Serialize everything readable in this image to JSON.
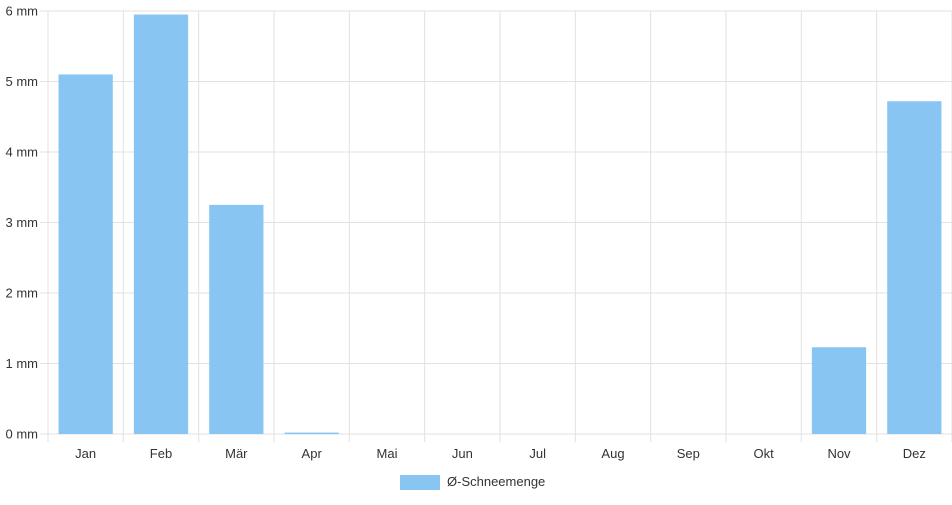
{
  "chart_data": {
    "type": "bar",
    "title": "",
    "xlabel": "",
    "ylabel": "",
    "categories": [
      "Jan",
      "Feb",
      "Mär",
      "Apr",
      "Mai",
      "Jun",
      "Jul",
      "Aug",
      "Sep",
      "Okt",
      "Nov",
      "Dez"
    ],
    "series": [
      {
        "name": "Ø-Schneemenge",
        "values": [
          5.1,
          5.95,
          3.25,
          0.02,
          0,
          0,
          0,
          0,
          0,
          0,
          1.23,
          4.72
        ],
        "color": "#88c5f2"
      }
    ],
    "ylim": [
      0,
      6
    ],
    "yticks": [
      "0 mm",
      "1 mm",
      "2 mm",
      "3 mm",
      "4 mm",
      "5 mm",
      "6 mm"
    ],
    "grid": true,
    "legend": "bottom-center"
  }
}
